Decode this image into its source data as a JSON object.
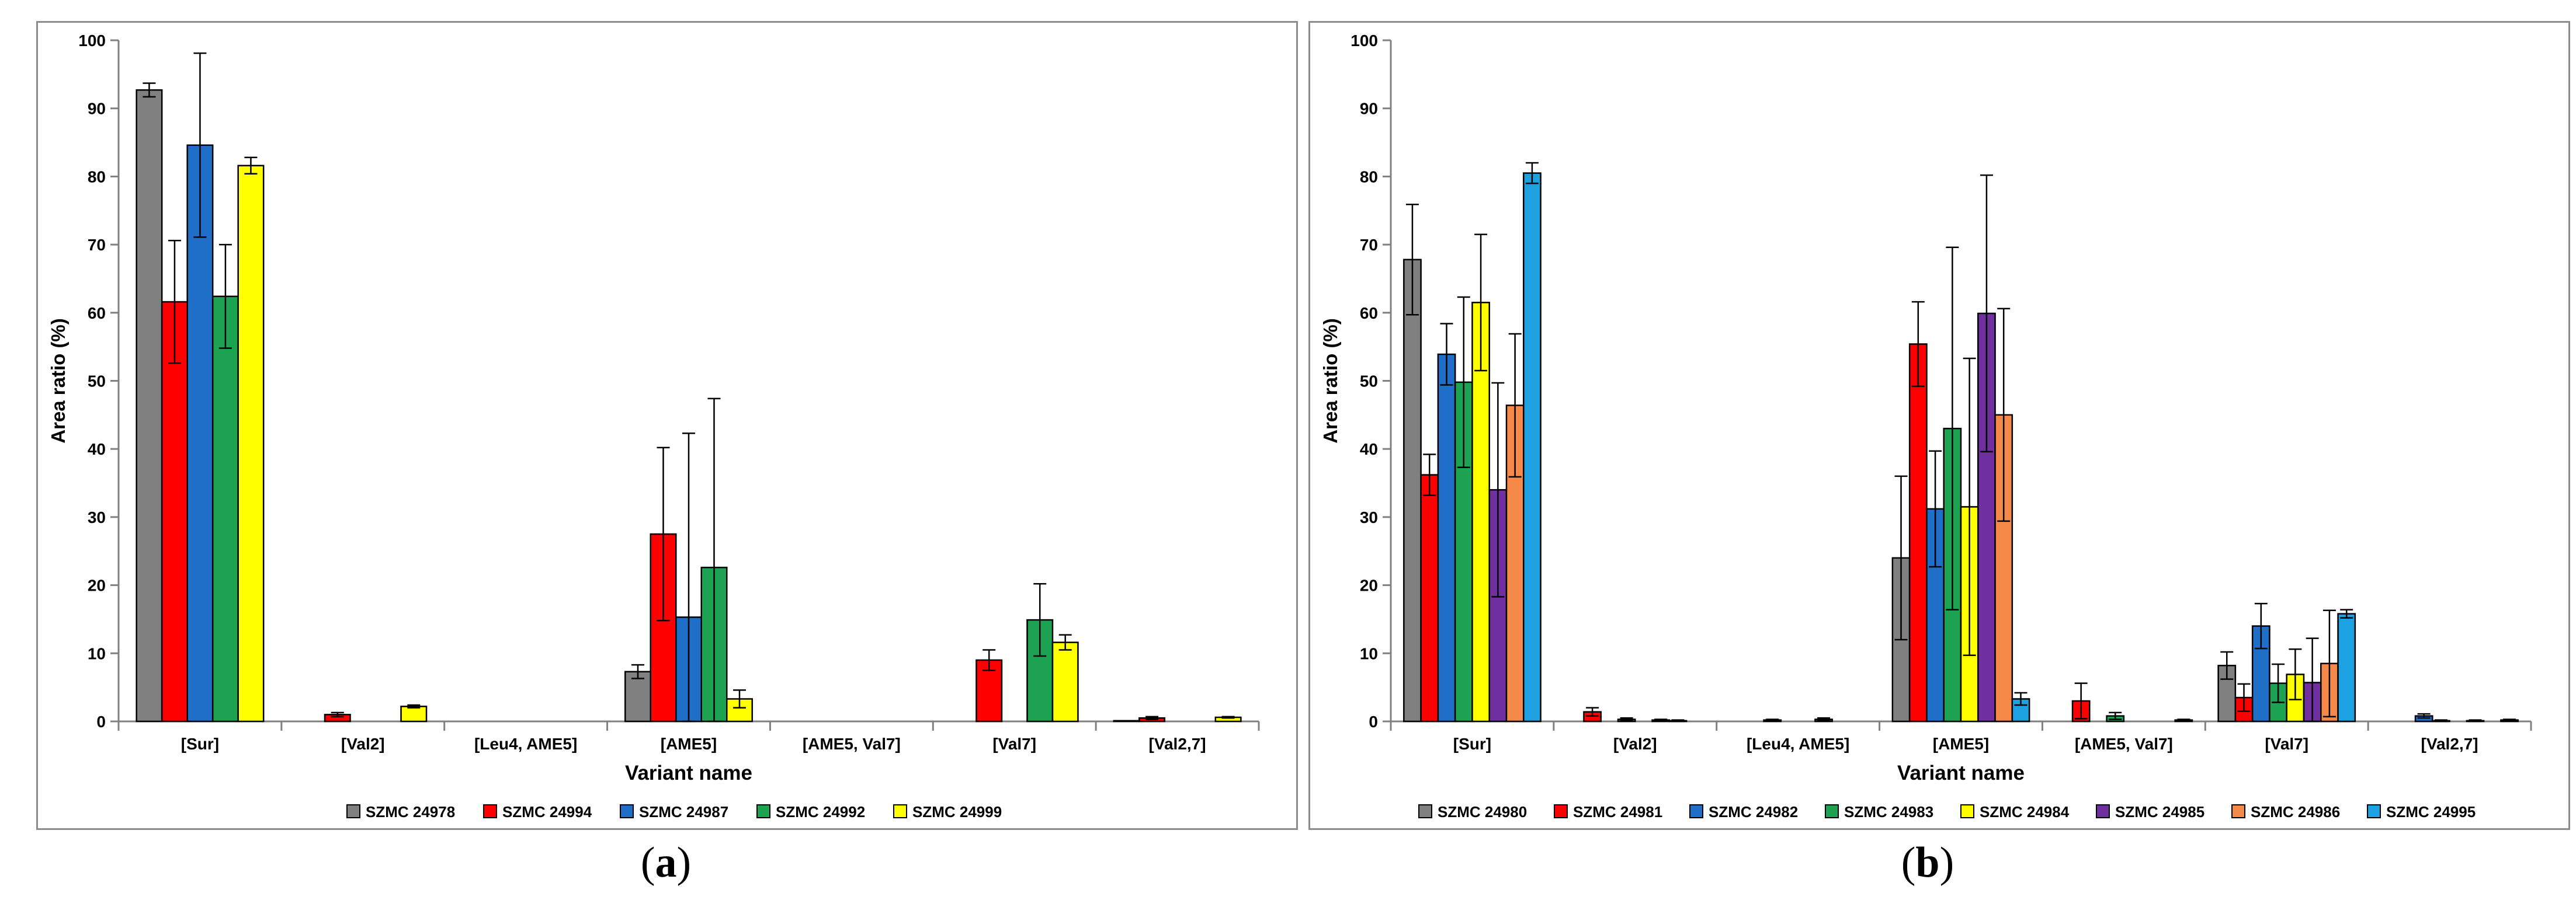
{
  "chart_data": [
    {
      "type": "bar",
      "panel": "a",
      "ylabel": "Area ratio (%)",
      "xlabel": "Variant name",
      "ylim": [
        0,
        100
      ],
      "yticks": [
        0,
        10,
        20,
        30,
        40,
        50,
        60,
        70,
        80,
        90,
        100
      ],
      "categories": [
        "[Sur]",
        "[Val2]",
        "[Leu4, AME5]",
        "[AME5]",
        "[AME5, Val7]",
        "[Val7]",
        "[Val2,7]"
      ],
      "series": [
        {
          "name": "SZMC 24978",
          "color": "#808080",
          "values": [
            92.7,
            0,
            0,
            7.3,
            0,
            0,
            0.1
          ],
          "errors": [
            1.0,
            0,
            0,
            1.0,
            0,
            0,
            0
          ]
        },
        {
          "name": "SZMC 24994",
          "color": "#ff0000",
          "values": [
            61.6,
            1.0,
            0,
            27.5,
            0,
            9.0,
            0.5
          ],
          "errors": [
            9.0,
            0.3,
            0,
            12.7,
            0,
            1.5,
            0.2
          ]
        },
        {
          "name": "SZMC 24987",
          "color": "#1f6fc8",
          "values": [
            84.6,
            0,
            0,
            15.3,
            0,
            0,
            0
          ],
          "errors": [
            13.5,
            0,
            0,
            27.0,
            0,
            0,
            0
          ]
        },
        {
          "name": "SZMC 24992",
          "color": "#1ea352",
          "values": [
            62.4,
            0,
            0,
            22.6,
            0,
            14.9,
            0
          ],
          "errors": [
            7.6,
            0,
            0,
            24.8,
            0,
            5.3,
            0
          ]
        },
        {
          "name": "SZMC 24999",
          "color": "#ffff00",
          "values": [
            81.6,
            2.2,
            0,
            3.3,
            0,
            11.6,
            0.6
          ],
          "errors": [
            1.2,
            0.2,
            0,
            1.3,
            0,
            1.1,
            0.1
          ]
        }
      ],
      "caption_label": "a"
    },
    {
      "type": "bar",
      "panel": "b",
      "ylabel": "Area ratio (%)",
      "xlabel": "Variant name",
      "ylim": [
        0,
        100
      ],
      "yticks": [
        0,
        10,
        20,
        30,
        40,
        50,
        60,
        70,
        80,
        90,
        100
      ],
      "categories": [
        "[Sur]",
        "[Val2]",
        "[Leu4, AME5]",
        "[AME5]",
        "[AME5, Val7]",
        "[Val7]",
        "[Val2,7]"
      ],
      "series": [
        {
          "name": "SZMC 24980",
          "color": "#808080",
          "values": [
            67.8,
            0,
            0,
            24.0,
            0,
            8.2,
            0
          ],
          "errors": [
            8.1,
            0,
            0,
            12.0,
            0,
            2.0,
            0
          ]
        },
        {
          "name": "SZMC 24981",
          "color": "#ff0000",
          "values": [
            36.2,
            1.4,
            0,
            55.4,
            3.0,
            3.5,
            0
          ],
          "errors": [
            3.0,
            0.6,
            0,
            6.2,
            2.6,
            2.0,
            0
          ]
        },
        {
          "name": "SZMC 24982",
          "color": "#1f6fc8",
          "values": [
            53.9,
            0,
            0.2,
            31.2,
            0,
            14.0,
            0.8
          ],
          "errors": [
            4.5,
            0,
            0.1,
            8.5,
            0,
            3.3,
            0.3
          ]
        },
        {
          "name": "SZMC 24983",
          "color": "#1ea352",
          "values": [
            49.8,
            0.3,
            0,
            43.0,
            0.8,
            5.6,
            0.1
          ],
          "errors": [
            12.5,
            0.2,
            0,
            26.6,
            0.5,
            2.8,
            0.1
          ]
        },
        {
          "name": "SZMC 24984",
          "color": "#ffff00",
          "values": [
            61.5,
            0,
            0,
            31.5,
            0,
            6.9,
            0
          ],
          "errors": [
            10.0,
            0,
            0,
            21.8,
            0,
            3.7,
            0
          ]
        },
        {
          "name": "SZMC 24985",
          "color": "#7030a0",
          "values": [
            34.0,
            0.2,
            0.3,
            59.9,
            0,
            5.7,
            0.1
          ],
          "errors": [
            15.7,
            0.1,
            0.2,
            20.3,
            0,
            6.5,
            0.1
          ]
        },
        {
          "name": "SZMC 24986",
          "color": "#f4894a",
          "values": [
            46.4,
            0.1,
            0,
            45.0,
            0,
            8.5,
            0
          ],
          "errors": [
            10.5,
            0.1,
            0,
            15.6,
            0,
            7.8,
            0
          ]
        },
        {
          "name": "SZMC 24995",
          "color": "#1da1e0",
          "values": [
            80.5,
            0,
            0,
            3.3,
            0.2,
            15.8,
            0.2
          ],
          "errors": [
            1.5,
            0,
            0,
            0.9,
            0.1,
            0.6,
            0.1
          ]
        }
      ],
      "caption_label": "b"
    }
  ]
}
